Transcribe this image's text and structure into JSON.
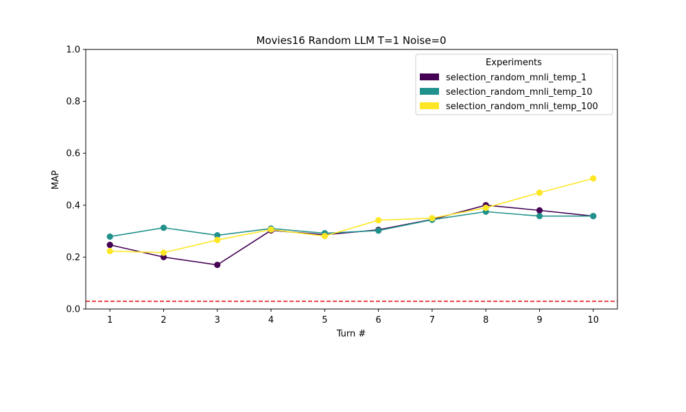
{
  "chart_data": {
    "type": "line",
    "title": "Movies16 Random LLM T=1 Noise=0",
    "xlabel": "Turn #",
    "ylabel": "MAP",
    "x": [
      1,
      2,
      3,
      4,
      5,
      6,
      7,
      8,
      9,
      10
    ],
    "x_ticks": [
      "1",
      "2",
      "3",
      "4",
      "5",
      "6",
      "7",
      "8",
      "9",
      "10"
    ],
    "y_ticks": [
      "0.0",
      "0.2",
      "0.4",
      "0.6",
      "0.8",
      "1.0"
    ],
    "ylim": [
      0,
      1
    ],
    "grid": false,
    "legend": {
      "title": "Experiments",
      "position": "top-right"
    },
    "series": [
      {
        "name": "selection_random_mnli_temp_1",
        "color": "#440154",
        "values": [
          0.247,
          0.2,
          0.17,
          0.303,
          0.286,
          0.305,
          0.345,
          0.4,
          0.38,
          0.358
        ]
      },
      {
        "name": "selection_random_mnli_temp_10",
        "color": "#21918c",
        "values": [
          0.279,
          0.313,
          0.284,
          0.31,
          0.292,
          0.302,
          0.344,
          0.375,
          0.358,
          0.358
        ]
      },
      {
        "name": "selection_random_mnli_temp_100",
        "color": "#fde725",
        "values": [
          0.223,
          0.217,
          0.266,
          0.306,
          0.281,
          0.342,
          0.35,
          0.39,
          0.448,
          0.503
        ]
      }
    ],
    "reference_line": {
      "value": 0.03,
      "color": "#e41a1c",
      "style": "dashed"
    }
  }
}
